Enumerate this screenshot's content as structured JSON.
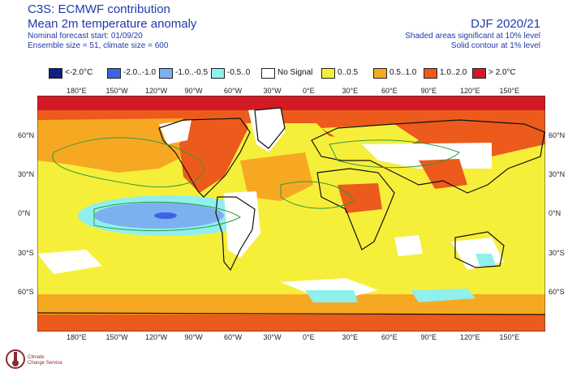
{
  "header": {
    "title_line1": "C3S: ECMWF contribution",
    "title_line2": "Mean 2m temperature anomaly",
    "line3": "Nominal forecast start: 01/09/20",
    "line4": "Ensemble size = 51, climate size = 600",
    "period": "DJF 2020/21",
    "sig1": "Shaded areas significant at 10% level",
    "sig2": "Solid contour at 1% level"
  },
  "legend": [
    {
      "label": "<-2.0°C",
      "color": "#0a1f8a"
    },
    {
      "label": "-2.0..-1.0",
      "color": "#3c63e6"
    },
    {
      "label": "-1.0..-0.5",
      "color": "#7cb0f0"
    },
    {
      "label": "-0.5..0",
      "color": "#8ff0ee"
    },
    {
      "label": "No Signal",
      "color": "#ffffff"
    },
    {
      "label": "0..0.5",
      "color": "#f6ef3a"
    },
    {
      "label": "0.5..1.0",
      "color": "#f7a823"
    },
    {
      "label": "1.0..2.0",
      "color": "#ec5a1c"
    },
    {
      "label": "> 2.0°C",
      "color": "#d11a23"
    }
  ],
  "axes": {
    "x_ticks": [
      "180°E",
      "150°W",
      "120°W",
      "90°W",
      "60°W",
      "30°W",
      "0°E",
      "30°E",
      "60°E",
      "90°E",
      "120°E",
      "150°E"
    ],
    "y_ticks": [
      "60°N",
      "30°N",
      "0°N",
      "30°S",
      "60°S"
    ]
  },
  "logo": {
    "line1": "Climate",
    "line2": "Change Service"
  }
}
